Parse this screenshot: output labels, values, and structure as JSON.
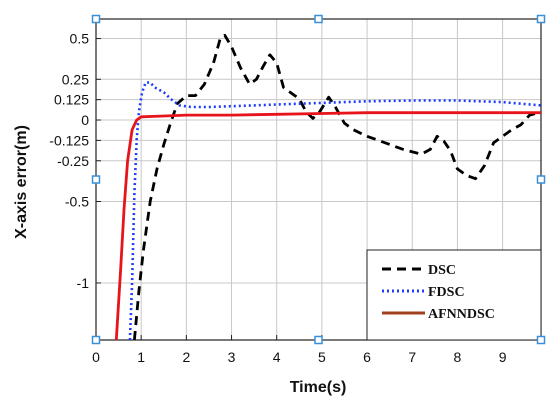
{
  "chart_data": {
    "type": "line",
    "title": "",
    "xlabel": "Time(s)",
    "ylabel": "X-axis error(m)",
    "xlim": [
      0,
      9.85
    ],
    "ylim": [
      -1.35,
      0.62
    ],
    "grid": true,
    "legend_position": "bottom-right",
    "x_ticks": [
      0,
      1,
      2,
      3,
      4,
      5,
      6,
      7,
      8,
      9
    ],
    "y_ticks": [
      {
        "value": 0.5,
        "label": "0.5"
      },
      {
        "value": 0.25,
        "label": "0.25"
      },
      {
        "value": 0.125,
        "label": "0.125"
      },
      {
        "value": 0,
        "label": "0"
      },
      {
        "value": -0.125,
        "label": "-0.125"
      },
      {
        "value": -0.25,
        "label": "-0.25"
      },
      {
        "value": -0.5,
        "label": "-0.5"
      },
      {
        "value": -1,
        "label": "-1"
      }
    ],
    "series": [
      {
        "name": "DSC",
        "color": "#000000",
        "style": "dashed",
        "points": [
          [
            0.85,
            -1.35
          ],
          [
            0.95,
            -1.05
          ],
          [
            1.05,
            -0.8
          ],
          [
            1.2,
            -0.5
          ],
          [
            1.35,
            -0.3
          ],
          [
            1.5,
            -0.15
          ],
          [
            1.65,
            -0.02
          ],
          [
            1.8,
            0.1
          ],
          [
            2.0,
            0.15
          ],
          [
            2.2,
            0.15
          ],
          [
            2.4,
            0.22
          ],
          [
            2.6,
            0.35
          ],
          [
            2.75,
            0.5
          ],
          [
            2.85,
            0.52
          ],
          [
            3.0,
            0.45
          ],
          [
            3.2,
            0.32
          ],
          [
            3.4,
            0.22
          ],
          [
            3.55,
            0.25
          ],
          [
            3.7,
            0.33
          ],
          [
            3.85,
            0.4
          ],
          [
            4.0,
            0.35
          ],
          [
            4.15,
            0.2
          ],
          [
            4.35,
            0.16
          ],
          [
            4.5,
            0.13
          ],
          [
            4.65,
            0.05
          ],
          [
            4.8,
            0.01
          ],
          [
            4.95,
            0.05
          ],
          [
            5.15,
            0.14
          ],
          [
            5.3,
            0.08
          ],
          [
            5.5,
            -0.02
          ],
          [
            5.7,
            -0.06
          ],
          [
            6.0,
            -0.1
          ],
          [
            6.4,
            -0.14
          ],
          [
            6.8,
            -0.18
          ],
          [
            7.2,
            -0.21
          ],
          [
            7.4,
            -0.18
          ],
          [
            7.55,
            -0.1
          ],
          [
            7.7,
            -0.13
          ],
          [
            7.85,
            -0.19
          ],
          [
            8.0,
            -0.3
          ],
          [
            8.2,
            -0.34
          ],
          [
            8.4,
            -0.36
          ],
          [
            8.6,
            -0.28
          ],
          [
            8.8,
            -0.14
          ],
          [
            9.0,
            -0.1
          ],
          [
            9.2,
            -0.06
          ],
          [
            9.4,
            -0.03
          ],
          [
            9.6,
            0.03
          ],
          [
            9.85,
            0.05
          ]
        ]
      },
      {
        "name": "FDSC",
        "color": "#1f3bff",
        "style": "dotted",
        "points": [
          [
            0.75,
            -1.35
          ],
          [
            0.8,
            -1.0
          ],
          [
            0.85,
            -0.45
          ],
          [
            0.9,
            -0.12
          ],
          [
            0.95,
            0.05
          ],
          [
            1.02,
            0.17
          ],
          [
            1.1,
            0.23
          ],
          [
            1.2,
            0.23
          ],
          [
            1.3,
            0.2
          ],
          [
            1.5,
            0.17
          ],
          [
            1.65,
            0.13
          ],
          [
            1.85,
            0.09
          ],
          [
            2.1,
            0.08
          ],
          [
            2.5,
            0.08
          ],
          [
            3.0,
            0.085
          ],
          [
            3.5,
            0.09
          ],
          [
            4.0,
            0.095
          ],
          [
            4.5,
            0.1
          ],
          [
            5.0,
            0.105
          ],
          [
            5.5,
            0.11
          ],
          [
            6.0,
            0.115
          ],
          [
            7.0,
            0.12
          ],
          [
            8.0,
            0.12
          ],
          [
            9.0,
            0.11
          ],
          [
            9.85,
            0.09
          ]
        ]
      },
      {
        "name": "AFNNDSC",
        "color": "#e8141c",
        "legend_color": "#a0401c",
        "style": "solid",
        "points": [
          [
            0.45,
            -1.35
          ],
          [
            0.55,
            -0.9
          ],
          [
            0.62,
            -0.55
          ],
          [
            0.7,
            -0.25
          ],
          [
            0.8,
            -0.06
          ],
          [
            0.9,
            0.0
          ],
          [
            1.0,
            0.02
          ],
          [
            1.5,
            0.025
          ],
          [
            2.0,
            0.03
          ],
          [
            3.0,
            0.03
          ],
          [
            4.0,
            0.035
          ],
          [
            5.0,
            0.04
          ],
          [
            6.0,
            0.045
          ],
          [
            7.0,
            0.045
          ],
          [
            8.0,
            0.045
          ],
          [
            9.0,
            0.045
          ],
          [
            9.85,
            0.045
          ]
        ]
      }
    ]
  }
}
